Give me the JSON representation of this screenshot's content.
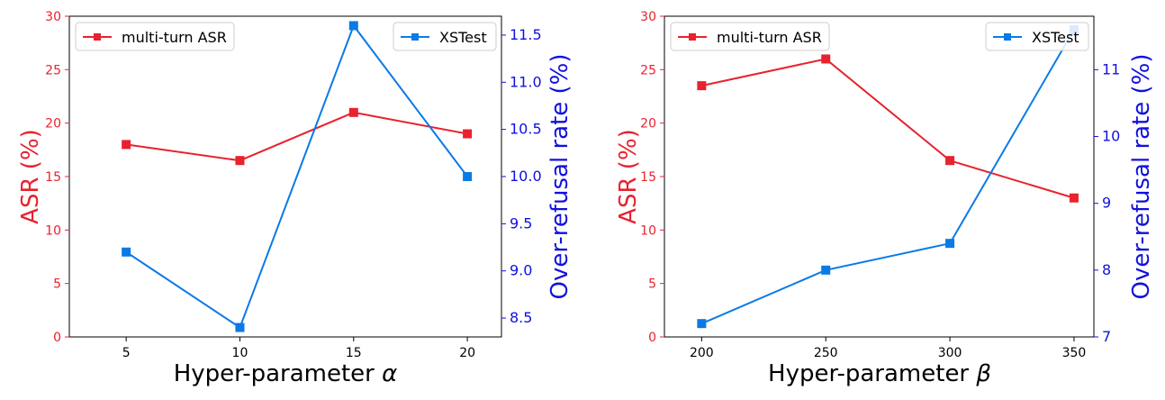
{
  "chart_data": [
    {
      "type": "line",
      "xlabel": "Hyper-parameter ",
      "xlabel_symbol": "α",
      "ylabel_left": "ASR (%)",
      "ylabel_right": "Over-refusal rate (%)",
      "x": [
        5,
        10,
        15,
        20
      ],
      "x_ticks": [
        "5",
        "10",
        "15",
        "20"
      ],
      "left_ylim": [
        0,
        30
      ],
      "left_ticks": [
        "0",
        "5",
        "10",
        "15",
        "20",
        "25",
        "30"
      ],
      "right_ylim": [
        8.3,
        11.7
      ],
      "right_ticks": [
        "8.5",
        "9.0",
        "9.5",
        "10.0",
        "10.5",
        "11.0",
        "11.5"
      ],
      "series": [
        {
          "name": "multi-turn ASR",
          "axis": "left",
          "values": [
            18,
            16.5,
            21,
            19
          ],
          "legend": "top-left"
        },
        {
          "name": "XSTest",
          "axis": "right",
          "values": [
            9.2,
            8.4,
            11.6,
            10.0
          ],
          "legend": "top-right"
        }
      ]
    },
    {
      "type": "line",
      "xlabel": "Hyper-parameter ",
      "xlabel_symbol": "β",
      "ylabel_left": "ASR (%)",
      "ylabel_right": "Over-refusal rate (%)",
      "x": [
        200,
        250,
        300,
        350
      ],
      "x_ticks": [
        "200",
        "250",
        "300",
        "350"
      ],
      "left_ylim": [
        0,
        30
      ],
      "left_ticks": [
        "0",
        "5",
        "10",
        "15",
        "20",
        "25",
        "30"
      ],
      "right_ylim": [
        7.0,
        11.8
      ],
      "right_ticks": [
        "7",
        "8",
        "9",
        "10",
        "11"
      ],
      "series": [
        {
          "name": "multi-turn ASR",
          "axis": "left",
          "values": [
            23.5,
            26,
            16.5,
            13
          ],
          "legend": "top-left"
        },
        {
          "name": "XSTest",
          "axis": "right",
          "values": [
            7.2,
            8.0,
            8.4,
            11.6
          ],
          "legend": "top-right"
        }
      ]
    }
  ],
  "colors": {
    "asr": "#e8222e",
    "xstest": "#0a7ae6",
    "left_axis": "#e8222e",
    "right_axis": "#1111dd"
  }
}
